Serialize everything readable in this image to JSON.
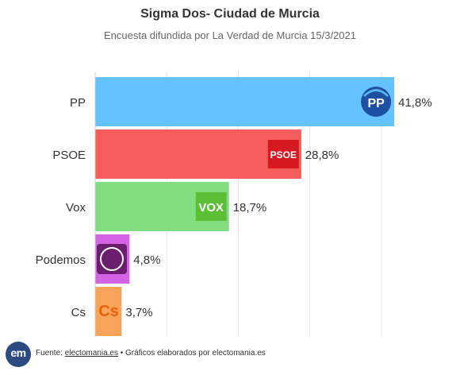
{
  "chart_data": {
    "type": "bar",
    "orientation": "horizontal",
    "title": "Sigma Dos- Ciudad de Murcia",
    "subtitle": "Encuesta difundida por La Verdad de Murcia 15/3/2021",
    "categories": [
      "PP",
      "PSOE",
      "Vox",
      "Podemos",
      "Cs"
    ],
    "values": [
      41.8,
      28.8,
      18.7,
      4.8,
      3.7
    ],
    "value_labels": [
      "41,8%",
      "28,8%",
      "18,7%",
      "4,8%",
      "3,7%"
    ],
    "colors": [
      "#63c2ff",
      "#f55d5d",
      "#80de80",
      "#d464e6",
      "#f9a35b"
    ],
    "logos": [
      "pp-logo",
      "psoe-logo",
      "vox-logo",
      "podemos-logo",
      "cs-logo"
    ],
    "logo_text": [
      "PP",
      "PSOE",
      "VOX",
      "",
      "Cs"
    ],
    "xlim": [
      0,
      45
    ],
    "gridlines": [
      10,
      20,
      30,
      40
    ],
    "grid": true,
    "legend": "none",
    "xlabel": "",
    "ylabel": ""
  },
  "footer": {
    "logo_text": "em",
    "prefix": "Fuente: ",
    "source": "electomania.es",
    "separator": " • ",
    "suffix": "Gráficos elaborados por electomania.es"
  }
}
